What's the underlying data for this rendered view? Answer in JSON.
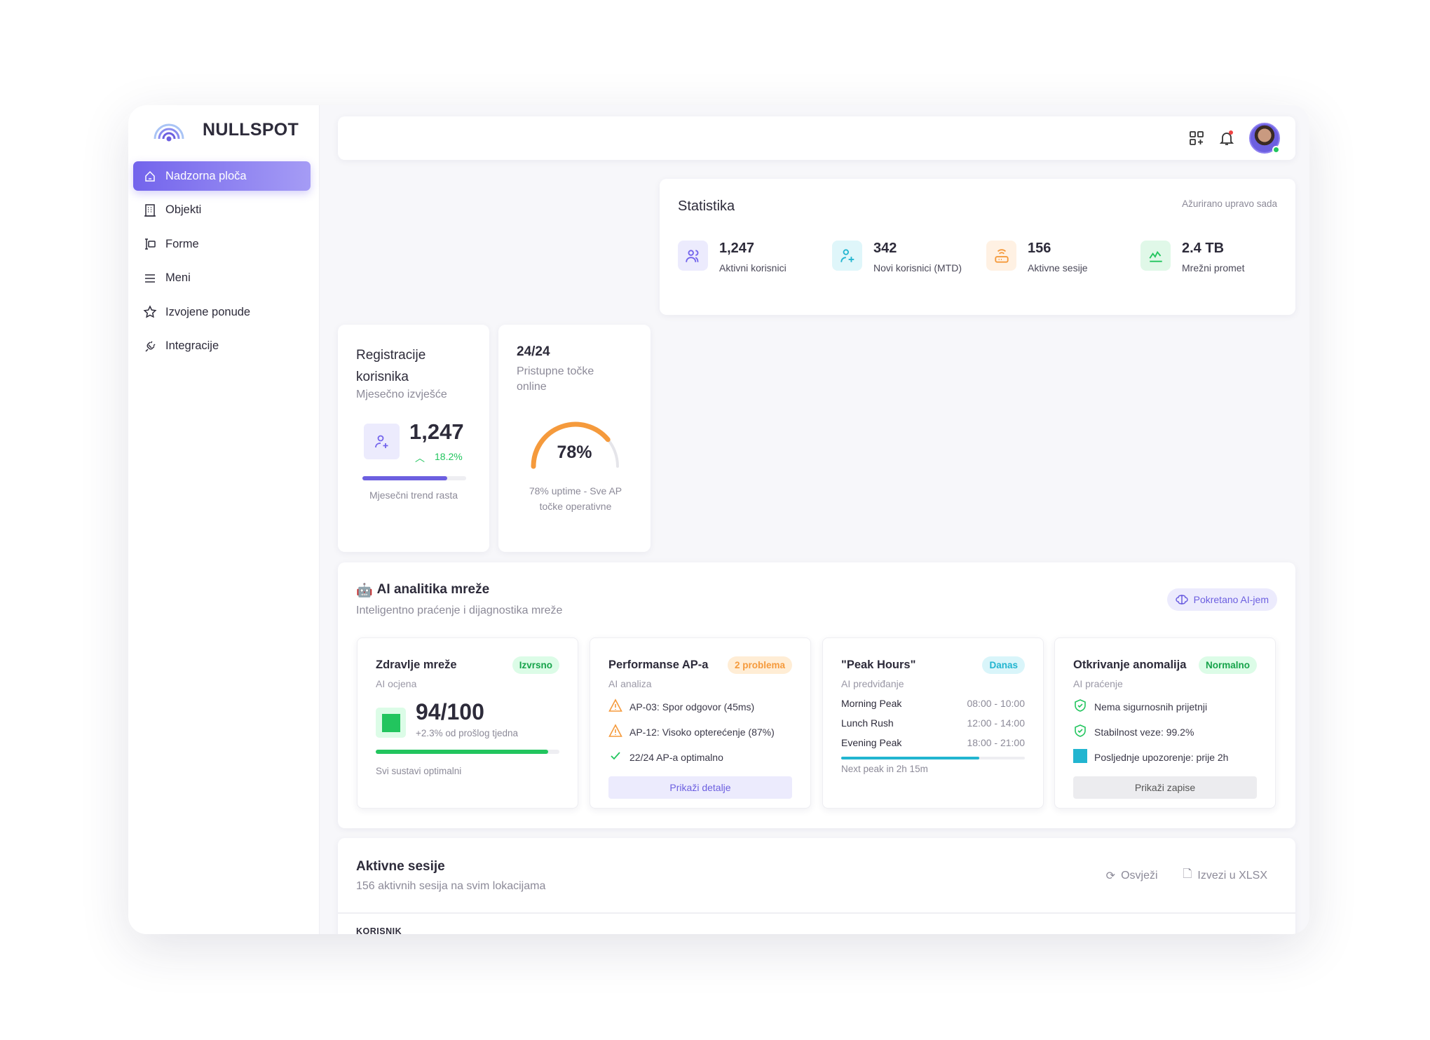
{
  "brand": {
    "name": "NULLSPOT",
    "accent": "#7364ec"
  },
  "sidebar": {
    "items": [
      {
        "label": "Nadzorna ploča",
        "icon": "home-icon",
        "active": true
      },
      {
        "label": "Objekti",
        "icon": "building-icon"
      },
      {
        "label": "Forme",
        "icon": "form-icon"
      },
      {
        "label": "Meni",
        "icon": "menu-icon"
      },
      {
        "label": "Izvojene ponude",
        "icon": "star-icon"
      },
      {
        "label": "Integracije",
        "icon": "plug-icon"
      }
    ]
  },
  "topbar": {
    "icons": [
      "apps-add-icon",
      "bell-icon",
      "avatar"
    ],
    "notification_dot": true,
    "online": true
  },
  "stats": {
    "title": "Statistika",
    "updated": "Ažurirano upravo sada",
    "items": [
      {
        "value": "1,247",
        "label": "Aktivni korisnici",
        "icon": "users-icon",
        "color": "#7364ec",
        "bg": "#ecebfd"
      },
      {
        "value": "342",
        "label": "Novi korisnici (MTD)",
        "icon": "user-plus-icon",
        "color": "#22b5d0",
        "bg": "#dff6fa"
      },
      {
        "value": "156",
        "label": "Aktivne sesije",
        "icon": "router-icon",
        "color": "#f59a3c",
        "bg": "#fff1e3"
      },
      {
        "value": "2.4 TB",
        "label": "Mrežni promet",
        "icon": "chart-line-icon",
        "color": "#22c55e",
        "bg": "#e0f8e8"
      }
    ]
  },
  "registrations": {
    "title": "Registracije korisnika",
    "subtitle": "Mjesečno izvješće",
    "value": "1,247",
    "growth": "18.2%",
    "progress": 82,
    "caption": "Mjesečni trend rasta"
  },
  "access_points": {
    "title": "24/24",
    "subtitle": "Pristupne točke online",
    "percent": 78,
    "percent_label": "78%",
    "caption": "78% uptime - Sve AP točke operativne"
  },
  "ai": {
    "title": "AI analitika mreže",
    "subtitle": "Inteligentno praćenje i dijagnostika mreže",
    "powered": "Pokretano AI-jem",
    "health": {
      "title": "Zdravlje mreže",
      "badge": "Izvrsno",
      "sub": "AI ocjena",
      "score": "94/100",
      "delta": "+2.3% od prošlog tjedna",
      "progress": 94,
      "caption": "Svi sustavi optimalni"
    },
    "performance": {
      "title": "Performanse AP-a",
      "badge": "2 problema",
      "sub": "AI analiza",
      "items": [
        {
          "text": "AP-03: Spor odgovor (45ms)",
          "icon": "warning-icon"
        },
        {
          "text": "AP-12: Visoko opterećenje (87%)",
          "icon": "warning-icon"
        },
        {
          "text": "22/24 AP-a optimalno",
          "icon": "check-icon"
        }
      ],
      "button": "Prikaži detalje"
    },
    "peak": {
      "title": "\"Peak Hours\"",
      "badge": "Danas",
      "sub": "AI predviđanje",
      "rows": [
        {
          "name": "Morning Peak",
          "time": "08:00 - 10:00"
        },
        {
          "name": "Lunch Rush",
          "time": "12:00 - 14:00"
        },
        {
          "name": "Evening Peak",
          "time": "18:00 - 21:00"
        }
      ],
      "progress": 75,
      "caption": "Next peak in 2h 15m"
    },
    "anomaly": {
      "title": "Otkrivanje anomalija",
      "badge": "Normalno",
      "sub": "AI praćenje",
      "items": [
        {
          "text": "Nema sigurnosnih prijetnji",
          "icon": "shield-check-icon"
        },
        {
          "text": "Stabilnost veze: 99.2%",
          "icon": "shield-check-icon"
        },
        {
          "text": "Posljednje upozorenje: prije 2h",
          "icon": "square-icon"
        }
      ],
      "button": "Prikaži zapise"
    }
  },
  "sessions": {
    "title": "Aktivne sesije",
    "subtitle": "156 aktivnih sesija na svim lokacijama",
    "refresh": "Osvježi",
    "export": "Izvezi u XLSX",
    "columns": [
      "KORISNIK"
    ]
  }
}
